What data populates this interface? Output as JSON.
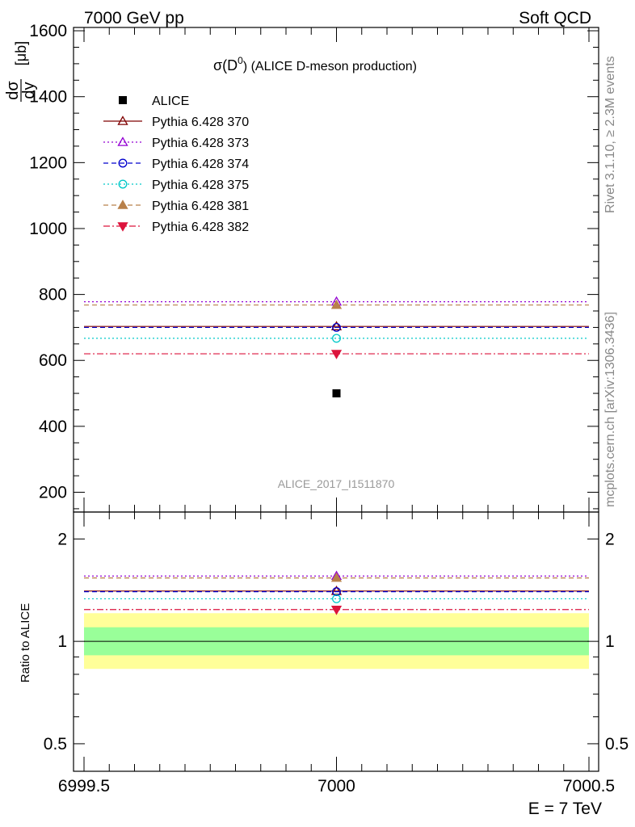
{
  "header": {
    "left": "7000 GeV pp",
    "right": "Soft QCD"
  },
  "side_labels": {
    "rivet": "Rivet 3.1.10, ≥ 2.3M events",
    "mcplots": "mcplots.cern.ch [arXiv:1306.3436]"
  },
  "main_plot": {
    "title_prefix": "σ(D",
    "title_sup": "0",
    "title_suffix": ") (ALICE D-meson production)",
    "ylabel_num": "dσ",
    "ylabel_den": "dy",
    "ylabel_unit": "[μb]",
    "watermark": "ALICE_2017_I1511870"
  },
  "ratio_plot": {
    "ylabel": "Ratio to ALICE"
  },
  "x_axis": {
    "label": "E = 7 TeV"
  },
  "colors": {
    "band_inner": "#99ff99",
    "band_outer": "#ffff99"
  },
  "chart_data": {
    "type": "scatter",
    "x_range": [
      6999.5,
      7000.5
    ],
    "x_ticks": [
      "6999.5",
      "7000",
      "7000.5"
    ],
    "main_y_range": [
      140,
      1610
    ],
    "main_y_ticks": [
      "200",
      "400",
      "600",
      "800",
      "1000",
      "1200",
      "1400",
      "1600"
    ],
    "ratio_y_range": [
      0.415,
      2.4
    ],
    "ratio_y_ticks": [
      "0.5",
      "1",
      "2"
    ],
    "ratio_band_inner": [
      0.91,
      1.1
    ],
    "ratio_band_outer": [
      0.83,
      1.21
    ],
    "data": {
      "name": "ALICE",
      "x": 7000,
      "y": 500,
      "color": "#000000",
      "marker": "square-filled"
    },
    "series": [
      {
        "name": "Pythia 6.428 370",
        "y": 703,
        "color": "#7f0000",
        "dash": "solid",
        "marker": "triangle-up-open"
      },
      {
        "name": "Pythia 6.428 373",
        "y": 778,
        "color": "#9400d3",
        "dash": "dotted",
        "marker": "triangle-up-open"
      },
      {
        "name": "Pythia 6.428 374",
        "y": 700,
        "color": "#0000cd",
        "dash": "dashed",
        "marker": "circle-open"
      },
      {
        "name": "Pythia 6.428 375",
        "y": 667,
        "color": "#00c8c8",
        "dash": "dotted",
        "marker": "circle-open"
      },
      {
        "name": "Pythia 6.428 381",
        "y": 768,
        "color": "#b8804a",
        "dash": "dashed",
        "marker": "triangle-up-filled"
      },
      {
        "name": "Pythia 6.428 382",
        "y": 620,
        "color": "#dc143c",
        "dash": "dashdot",
        "marker": "triangle-down-filled"
      }
    ]
  }
}
